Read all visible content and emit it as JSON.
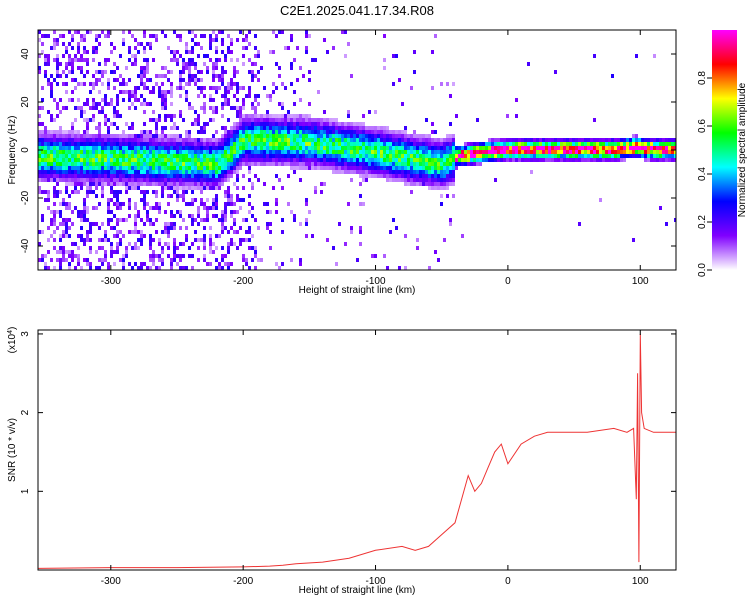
{
  "title": "C2E1.2025.041.17.34.R08",
  "chart_data": [
    {
      "type": "heatmap",
      "xlabel": "Height of straight line (km)",
      "ylabel": "Frequency (Hz)",
      "xlim": [
        -355,
        127
      ],
      "ylim": [
        -50,
        50
      ],
      "xticks": [
        -300,
        -200,
        -100,
        0,
        100
      ],
      "xtick_labels": [
        "-300",
        "-200",
        "-100",
        "0",
        "100"
      ],
      "yticks": [
        -40,
        -20,
        0,
        20,
        40
      ],
      "ytick_labels": [
        "-40",
        "-20",
        "0",
        "20",
        "40"
      ],
      "ridge": {
        "x": [
          -355,
          -300,
          -260,
          -220,
          -200,
          -150,
          -100,
          -75,
          -50,
          -40,
          -20,
          0,
          50,
          80,
          95,
          110,
          127
        ],
        "y": [
          -2,
          -3,
          -4,
          -5,
          5,
          4,
          0,
          -3,
          -5,
          -2,
          0,
          1,
          1,
          1,
          2,
          1,
          1
        ]
      },
      "colorbar": {
        "label": "Normalized spectral amplitude",
        "range": [
          0,
          1
        ],
        "ticks": [
          0.0,
          0.2,
          0.4,
          0.6,
          0.8
        ],
        "tick_labels": [
          "0.0",
          "0.2",
          "0.4",
          "0.6",
          "0.8"
        ],
        "colormap": [
          "#ffffff",
          "#8000ff",
          "#0000ff",
          "#00ffff",
          "#00ff00",
          "#ffff00",
          "#ff0000",
          "#ff00ff"
        ]
      },
      "grid": false
    },
    {
      "type": "line",
      "xlabel": "Height of straight line (km)",
      "ylabel": "SNR (10 * v/v)",
      "multiplier_label": "(x10",
      "multiplier_exponent": "4",
      "xlim": [
        -355,
        127
      ],
      "ylim": [
        0,
        3.05
      ],
      "xticks": [
        -300,
        -200,
        -100,
        0,
        100
      ],
      "xtick_labels": [
        "-300",
        "-200",
        "-100",
        "0",
        "100"
      ],
      "yticks": [
        1,
        2,
        3
      ],
      "ytick_labels": [
        "1",
        "2",
        "3"
      ],
      "series": [
        {
          "color": "#ee3333",
          "x": [
            -355,
            -300,
            -250,
            -200,
            -180,
            -170,
            -160,
            -140,
            -120,
            -100,
            -80,
            -70,
            -60,
            -50,
            -40,
            -35,
            -30,
            -25,
            -20,
            -15,
            -10,
            -5,
            0,
            10,
            20,
            30,
            40,
            60,
            80,
            90,
            95,
            97,
            98,
            99,
            100,
            101,
            103,
            110,
            127
          ],
          "y": [
            0.02,
            0.03,
            0.03,
            0.04,
            0.05,
            0.06,
            0.08,
            0.1,
            0.15,
            0.25,
            0.3,
            0.25,
            0.3,
            0.45,
            0.6,
            0.9,
            1.2,
            1.0,
            1.1,
            1.3,
            1.5,
            1.6,
            1.35,
            1.6,
            1.7,
            1.75,
            1.75,
            1.75,
            1.8,
            1.75,
            1.8,
            0.9,
            2.5,
            0.1,
            3.0,
            2.0,
            1.8,
            1.75,
            1.75
          ]
        }
      ],
      "grid": false
    }
  ]
}
